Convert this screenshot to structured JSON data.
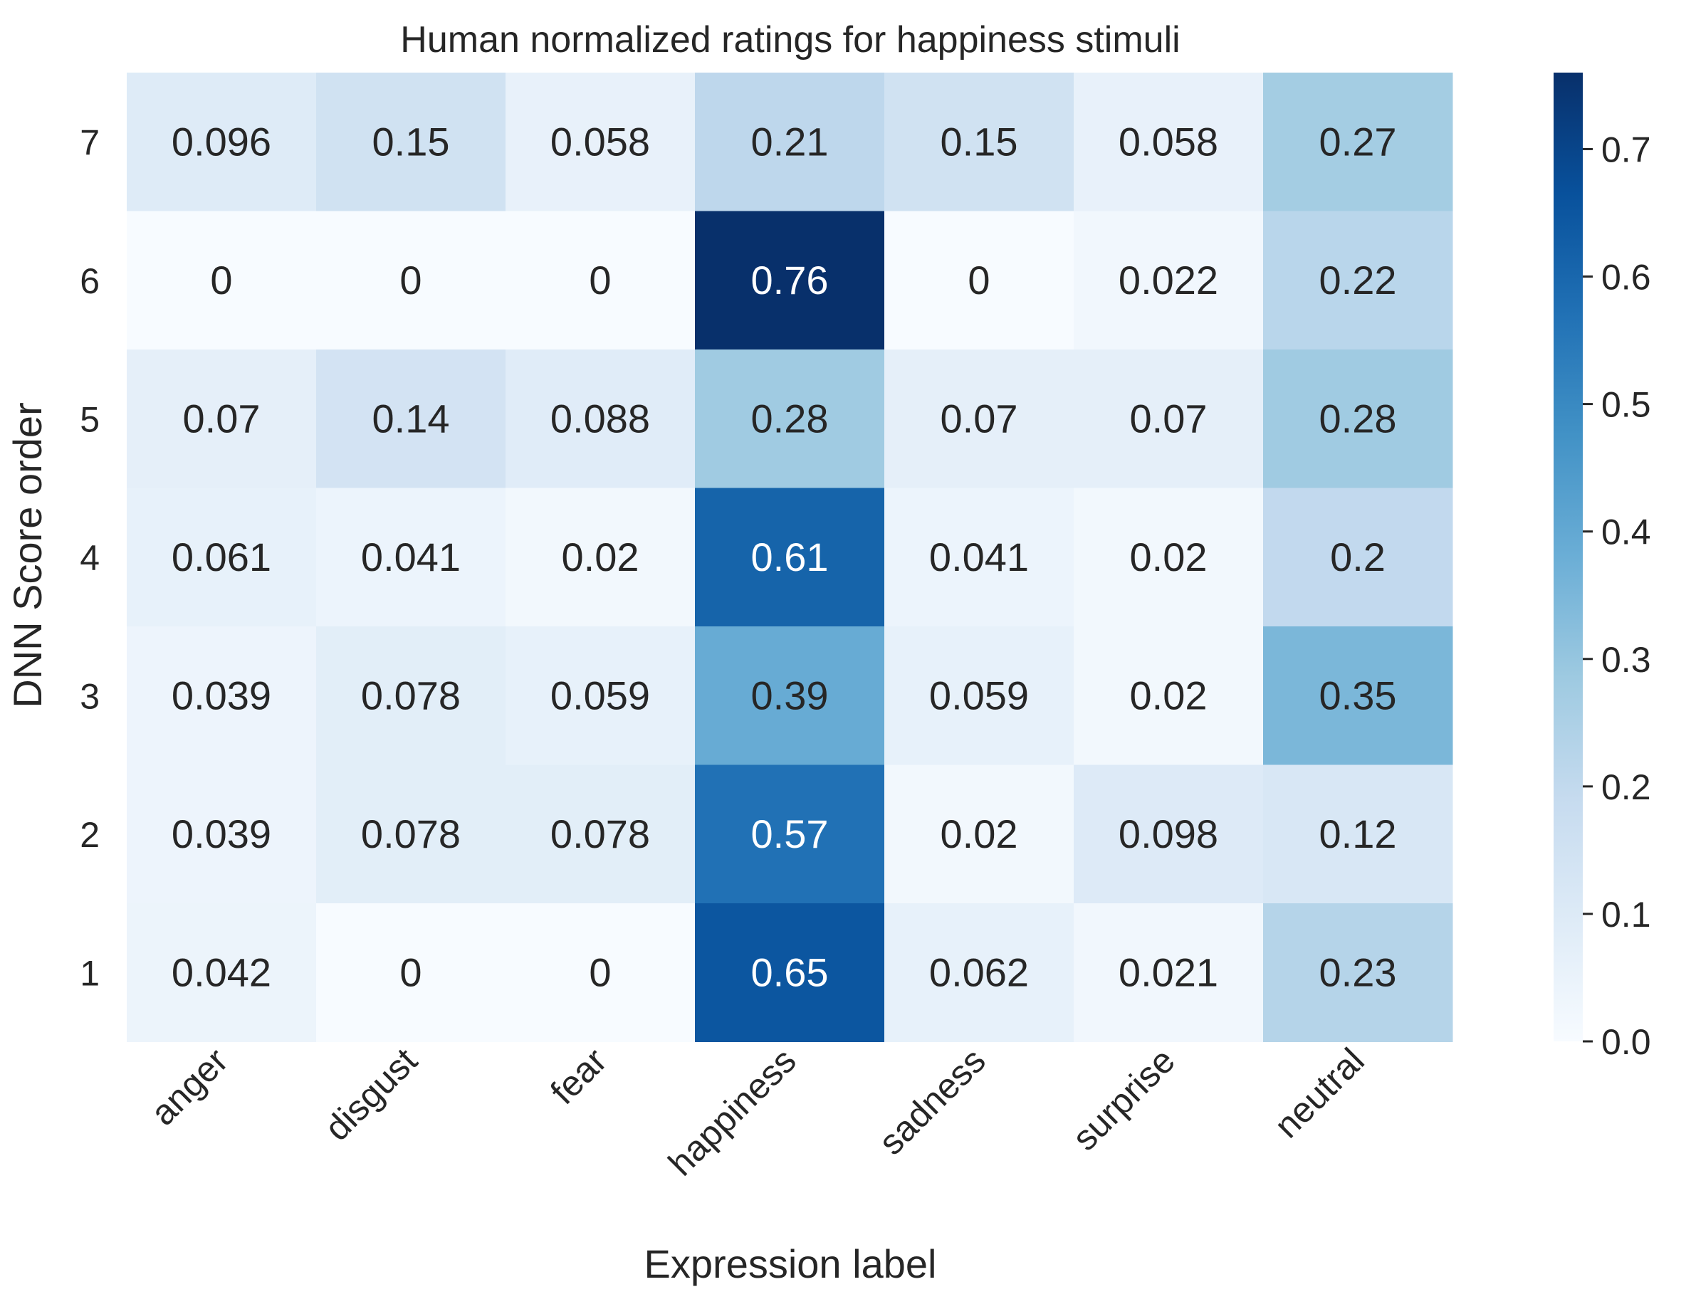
{
  "chart_data": {
    "type": "heatmap",
    "title": "Human normalized ratings for happiness stimuli",
    "xlabel": "Expression label",
    "ylabel": "DNN Score order",
    "x_categories": [
      "anger",
      "disgust",
      "fear",
      "happiness",
      "sadness",
      "surprise",
      "neutral"
    ],
    "y_categories": [
      "7",
      "6",
      "5",
      "4",
      "3",
      "2",
      "1"
    ],
    "values": [
      [
        0.096,
        0.15,
        0.058,
        0.21,
        0.15,
        0.058,
        0.27
      ],
      [
        0,
        0,
        0,
        0.76,
        0,
        0.022,
        0.22
      ],
      [
        0.07,
        0.14,
        0.088,
        0.28,
        0.07,
        0.07,
        0.28
      ],
      [
        0.061,
        0.041,
        0.02,
        0.61,
        0.041,
        0.02,
        0.2
      ],
      [
        0.039,
        0.078,
        0.059,
        0.39,
        0.059,
        0.02,
        0.35
      ],
      [
        0.039,
        0.078,
        0.078,
        0.57,
        0.02,
        0.098,
        0.12
      ],
      [
        0.042,
        0,
        0,
        0.65,
        0.062,
        0.021,
        0.23
      ]
    ],
    "colormap": "Blues",
    "colorbar": {
      "min": 0.0,
      "max": 0.76,
      "ticks": [
        0.0,
        0.1,
        0.2,
        0.3,
        0.4,
        0.5,
        0.6,
        0.7
      ],
      "tick_labels": [
        "0.0",
        "0.1",
        "0.2",
        "0.3",
        "0.4",
        "0.5",
        "0.6",
        "0.7"
      ]
    },
    "colors": {
      "text_dark": "#262626",
      "text_light": "#ffffff",
      "blues": [
        "#f7fbff",
        "#deebf7",
        "#c6dbef",
        "#9ecae1",
        "#6baed6",
        "#4292c6",
        "#2171b5",
        "#08519c",
        "#08306b"
      ]
    }
  }
}
